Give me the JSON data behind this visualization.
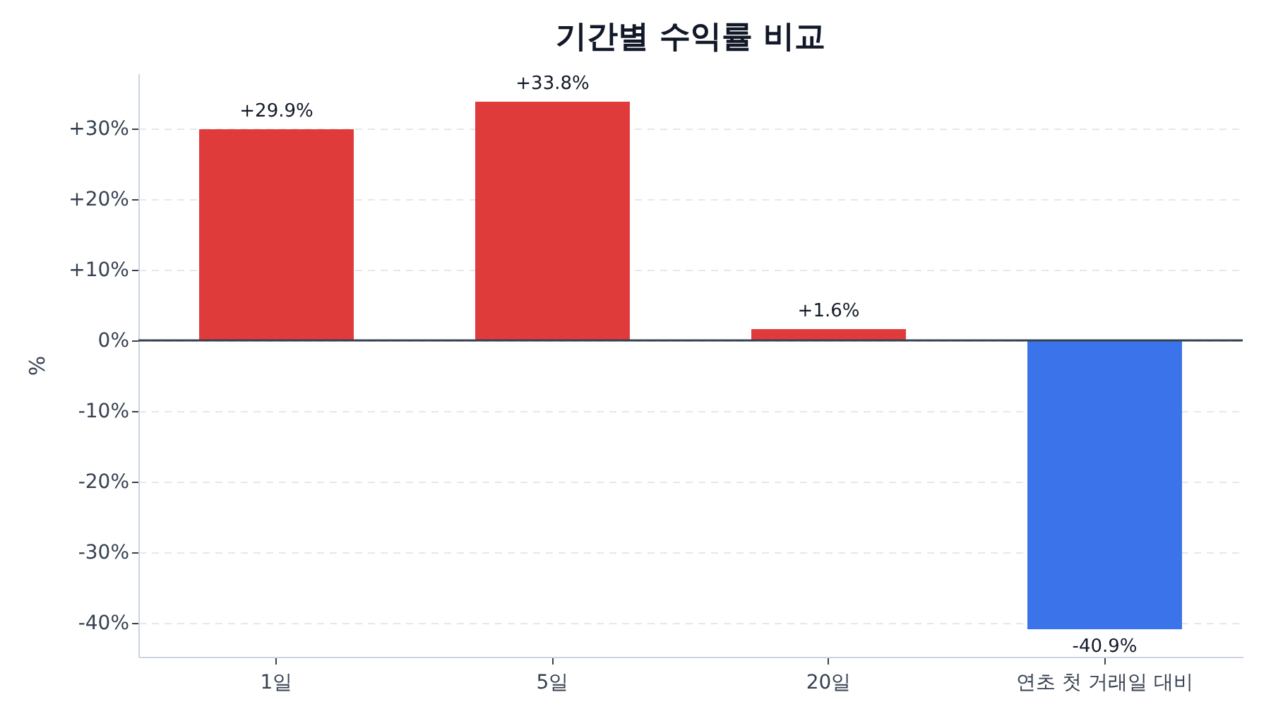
{
  "chart_data": {
    "type": "bar",
    "title": "기간별 수익률 비교",
    "ylabel": "%",
    "categories": [
      "1일",
      "5일",
      "20일",
      "연초 첫 거래일 대비"
    ],
    "values": [
      29.9,
      33.8,
      1.6,
      -40.9
    ],
    "colors": [
      "#e03b3b",
      "#e03b3b",
      "#e03b3b",
      "#3b74ea"
    ],
    "value_labels": [
      "+29.9%",
      "+33.8%",
      "+1.6%",
      "-40.9%"
    ],
    "ylim": [
      -44.8,
      37.8
    ],
    "yticks": [
      {
        "value": -40,
        "label": "-40%"
      },
      {
        "value": -30,
        "label": "-30%"
      },
      {
        "value": -20,
        "label": "-20%"
      },
      {
        "value": -10,
        "label": "-10%"
      },
      {
        "value": 0,
        "label": "0%"
      },
      {
        "value": 10,
        "label": "+10%"
      },
      {
        "value": 20,
        "label": "+20%"
      },
      {
        "value": 30,
        "label": "+30%"
      }
    ],
    "ref_lines": [
      {
        "axis": "y",
        "value": 0,
        "color": "#374151"
      }
    ],
    "grid": "y"
  }
}
